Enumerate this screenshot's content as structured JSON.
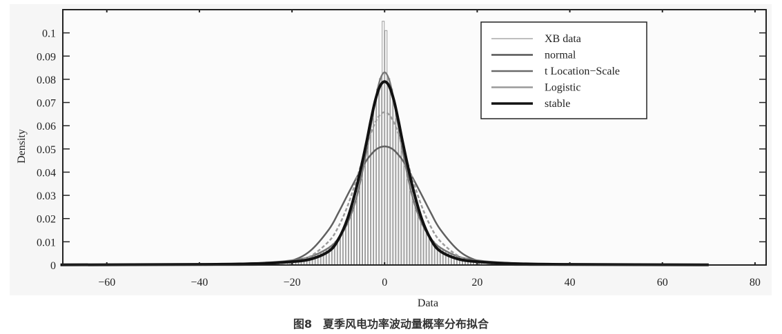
{
  "caption": "图8　夏季风电功率波动量概率分布拟合",
  "chart_data": {
    "type": "bar+line",
    "xlabel": "Data",
    "ylabel": "Density",
    "xlim": [
      -69.5,
      82.4
    ],
    "ylim": [
      0,
      0.11
    ],
    "xticks": [
      -60,
      -40,
      -20,
      0,
      20,
      40,
      60,
      80
    ],
    "xtick_labels": [
      "−60",
      "−40",
      "−20",
      "0",
      "20",
      "40",
      "60",
      "80"
    ],
    "yticks": [
      0,
      0.01,
      0.02,
      0.03,
      0.04,
      0.05,
      0.06,
      0.07,
      0.08,
      0.09,
      0.1
    ],
    "ytick_labels": [
      "0",
      "0.01",
      "0.02",
      "0.03",
      "0.04",
      "0.05",
      "0.06",
      "0.07",
      "0.08",
      "0.09",
      "0.1"
    ],
    "grid": false,
    "legend_placement": "top-right",
    "histogram": {
      "name": "XB data",
      "bin_width": 0.6,
      "bin_centers_positive": [
        0.3,
        0.9,
        1.5,
        2.1,
        2.7,
        3.3,
        3.9,
        4.5,
        5.1,
        5.7,
        6.3,
        6.9,
        7.5,
        8.1,
        8.7,
        9.3,
        9.9,
        10.5,
        11.1,
        11.7,
        12.3,
        12.9,
        13.5,
        14.1,
        14.7,
        15.3,
        15.9,
        16.5,
        17.1,
        17.7,
        18.3,
        18.9,
        19.5,
        20.1,
        20.7
      ],
      "density_positive": [
        0.101,
        0.0803,
        0.0758,
        0.0699,
        0.0631,
        0.056,
        0.0491,
        0.0427,
        0.0369,
        0.0318,
        0.0274,
        0.0236,
        0.0204,
        0.0177,
        0.0153,
        0.0133,
        0.0117,
        0.0102,
        0.009,
        0.008,
        0.0071,
        0.0063,
        0.0056,
        0.005,
        0.0045,
        0.0041,
        0.0037,
        0.0034,
        0.003,
        0.0028,
        0.0025,
        0.0023,
        0.0021,
        0.0019,
        0.0017
      ],
      "density_negative": [
        0.105,
        0.0803,
        0.0758,
        0.0699,
        0.0631,
        0.056,
        0.0491,
        0.0427,
        0.0369,
        0.0318,
        0.0274,
        0.0236,
        0.0204,
        0.0177,
        0.0153,
        0.0133,
        0.0117,
        0.0102,
        0.009,
        0.008,
        0.0071,
        0.0063,
        0.0056,
        0.005,
        0.0045,
        0.0041,
        0.0037,
        0.0034,
        0.003,
        0.0028,
        0.0025,
        0.0023,
        0.0021,
        0.0019,
        0.0017
      ],
      "color": "#9a9a9a"
    },
    "curve_x_positive": [
      0,
      1,
      2,
      3,
      4,
      6,
      8,
      10,
      12,
      16,
      20,
      25,
      30,
      40,
      70
    ],
    "series": [
      {
        "name": "normal",
        "color": "#606060",
        "y": [
          0.0511,
          0.0507,
          0.0495,
          0.0474,
          0.0448,
          0.0378,
          0.0302,
          0.0224,
          0.0154,
          0.0062,
          0.0019,
          0.0003,
          3e-05,
          0,
          0
        ]
      },
      {
        "name": "t Location−Scale",
        "color": "#777777",
        "y": [
          0.083,
          0.0797,
          0.071,
          0.0595,
          0.048,
          0.0295,
          0.0181,
          0.0114,
          0.0075,
          0.0036,
          0.002,
          0.00107,
          0.00063,
          0.00027,
          5e-05
        ]
      },
      {
        "name": "Logistic",
        "color": "#9c9c9c",
        "dashed": true,
        "y": [
          0.0658,
          0.0647,
          0.0614,
          0.0565,
          0.0505,
          0.0373,
          0.0254,
          0.0164,
          0.0103,
          0.0038,
          0.00135,
          0.00037,
          0.0001,
          1e-05,
          0
        ]
      },
      {
        "name": "stable",
        "color": "#111111",
        "y": [
          0.079,
          0.077,
          0.071,
          0.062,
          0.052,
          0.034,
          0.02,
          0.011,
          0.006,
          0.0025,
          0.0014,
          0.0008,
          0.0005,
          0.00025,
          6e-05
        ]
      }
    ],
    "legend": [
      {
        "label": "XB data",
        "color": "#a8a8a8"
      },
      {
        "label": "normal",
        "color": "#555555"
      },
      {
        "label": "t Location−Scale",
        "color": "#6a6a6a"
      },
      {
        "label": "Logistic",
        "color": "#9a9a9a"
      },
      {
        "label": "stable",
        "color": "#111111"
      }
    ]
  }
}
